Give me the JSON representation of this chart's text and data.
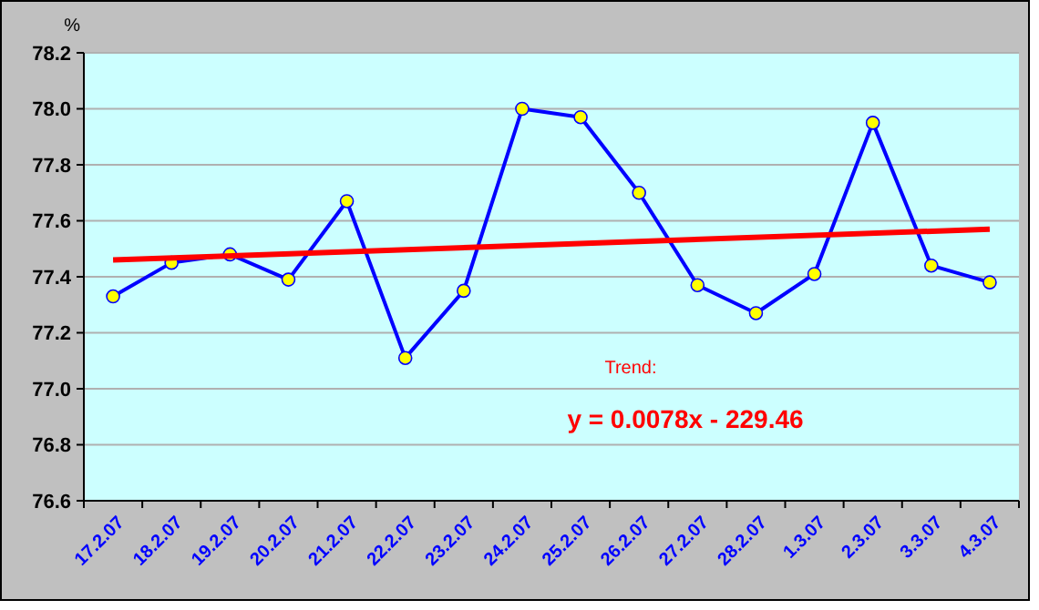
{
  "chart_data": {
    "type": "line",
    "ylabel": "%",
    "categories": [
      "17.2.07",
      "18.2.07",
      "19.2.07",
      "20.2.07",
      "21.2.07",
      "22.2.07",
      "23.2.07",
      "24.2.07",
      "25.2.07",
      "26.2.07",
      "27.2.07",
      "28.2.07",
      "1.3.07",
      "2.3.07",
      "3.3.07",
      "4.3.07"
    ],
    "series": [
      {
        "color": "#0000ff",
        "marker": "circle",
        "values": [
          77.33,
          77.45,
          77.48,
          77.39,
          77.67,
          77.11,
          77.35,
          78.0,
          77.97,
          77.7,
          77.37,
          77.27,
          77.41,
          77.95,
          77.44,
          77.38
        ]
      },
      {
        "type": "line",
        "color": "#ff0000",
        "marker": "none",
        "x": [
          "17.2.07",
          "4.3.07"
        ],
        "values": [
          77.46,
          77.57
        ]
      }
    ],
    "ylim": [
      76.6,
      78.2
    ],
    "yticks": [
      {
        "value": 76.6,
        "label": "76.6"
      },
      {
        "value": 76.8,
        "label": "76.8"
      },
      {
        "value": 77,
        "label": "77.0"
      },
      {
        "value": 77.2,
        "label": "77.2"
      },
      {
        "value": 77.4,
        "label": "77.4"
      },
      {
        "value": 77.6,
        "label": "77.6"
      },
      {
        "value": 77.8,
        "label": "77.8"
      },
      {
        "value": 78,
        "label": "78.0"
      },
      {
        "value": 78.2,
        "label": "78.2"
      }
    ],
    "grid": "y",
    "annotations": [
      "Trend:",
      "y = 0.0078x - 229.46"
    ]
  }
}
